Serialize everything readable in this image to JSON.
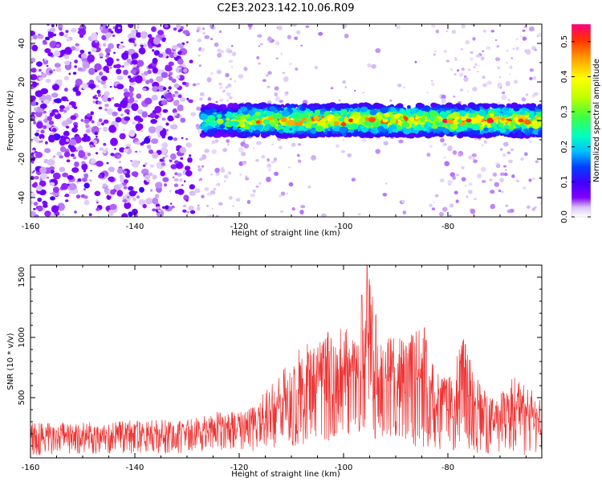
{
  "title": "C2E3.2023.142.10.06.R09",
  "chart_data": [
    {
      "type": "heatmap",
      "xlabel": "Height of straight line (km)",
      "ylabel": "Frequency (Hz)",
      "xlim": [
        -160,
        -62
      ],
      "ylim": [
        -50,
        50
      ],
      "xticks": [
        -160,
        -140,
        -120,
        -100,
        -80
      ],
      "yticks": [
        -40,
        -20,
        0,
        20,
        40
      ],
      "colorbar": {
        "label": "Normalized spectral amplitude",
        "range": [
          0.0,
          0.55
        ],
        "ticks": [
          0.0,
          0.1,
          0.2,
          0.3,
          0.4,
          0.5
        ],
        "colormap": [
          "#ffffff",
          "#d9c2f5",
          "#8000ff",
          "#4000ff",
          "#0040ff",
          "#00c0ff",
          "#00ffc0",
          "#40ff40",
          "#c0ff00",
          "#ffff00",
          "#ffa000",
          "#ff3000",
          "#ff0080"
        ]
      },
      "band": {
        "center_hz": 0,
        "x_start_km": -127,
        "x_end_km": -62
      },
      "peaks": [
        {
          "x": -114,
          "y": 1,
          "value": 0.45
        },
        {
          "x": -100,
          "y": -2,
          "value": 0.5
        },
        {
          "x": -92,
          "y": 0,
          "value": 0.4
        },
        {
          "x": -87,
          "y": 1,
          "value": 0.4
        },
        {
          "x": -76,
          "y": 0,
          "value": 0.52
        },
        {
          "x": -66,
          "y": 0,
          "value": 0.5
        }
      ]
    },
    {
      "type": "line",
      "xlabel": "Height of straight line (km)",
      "ylabel": "SNR (10 * v/v)",
      "xlim": [
        -160,
        -62
      ],
      "ylim": [
        0,
        1600
      ],
      "xticks": [
        -160,
        -140,
        -120,
        -100,
        -80
      ],
      "yticks": [
        500,
        1000,
        1500
      ],
      "color": "#ee3333",
      "envelope": {
        "x": [
          -160,
          -150,
          -140,
          -130,
          -125,
          -120,
          -115,
          -110,
          -107,
          -105,
          -102,
          -100,
          -98,
          -96,
          -95,
          -93,
          -90,
          -87,
          -85,
          -82,
          -80,
          -77,
          -75,
          -72,
          -70,
          -67,
          -65,
          -62
        ],
        "upper": [
          290,
          300,
          310,
          320,
          390,
          380,
          550,
          820,
          1020,
          950,
          1050,
          1130,
          1020,
          1080,
          1600,
          1050,
          1000,
          1050,
          1100,
          720,
          650,
          1000,
          720,
          500,
          580,
          680,
          600,
          500
        ],
        "lower": [
          20,
          30,
          30,
          40,
          60,
          40,
          60,
          80,
          100,
          120,
          150,
          200,
          180,
          160,
          150,
          140,
          120,
          100,
          80,
          70,
          60,
          50,
          40,
          30,
          30,
          20,
          20,
          20
        ]
      },
      "peaks": [
        {
          "x": -95.5,
          "y": 1600
        },
        {
          "x": -96.5,
          "y": 1350
        },
        {
          "x": -84.5,
          "y": 1080
        },
        {
          "x": -77,
          "y": 980
        },
        {
          "x": -103,
          "y": 1040
        }
      ]
    }
  ]
}
